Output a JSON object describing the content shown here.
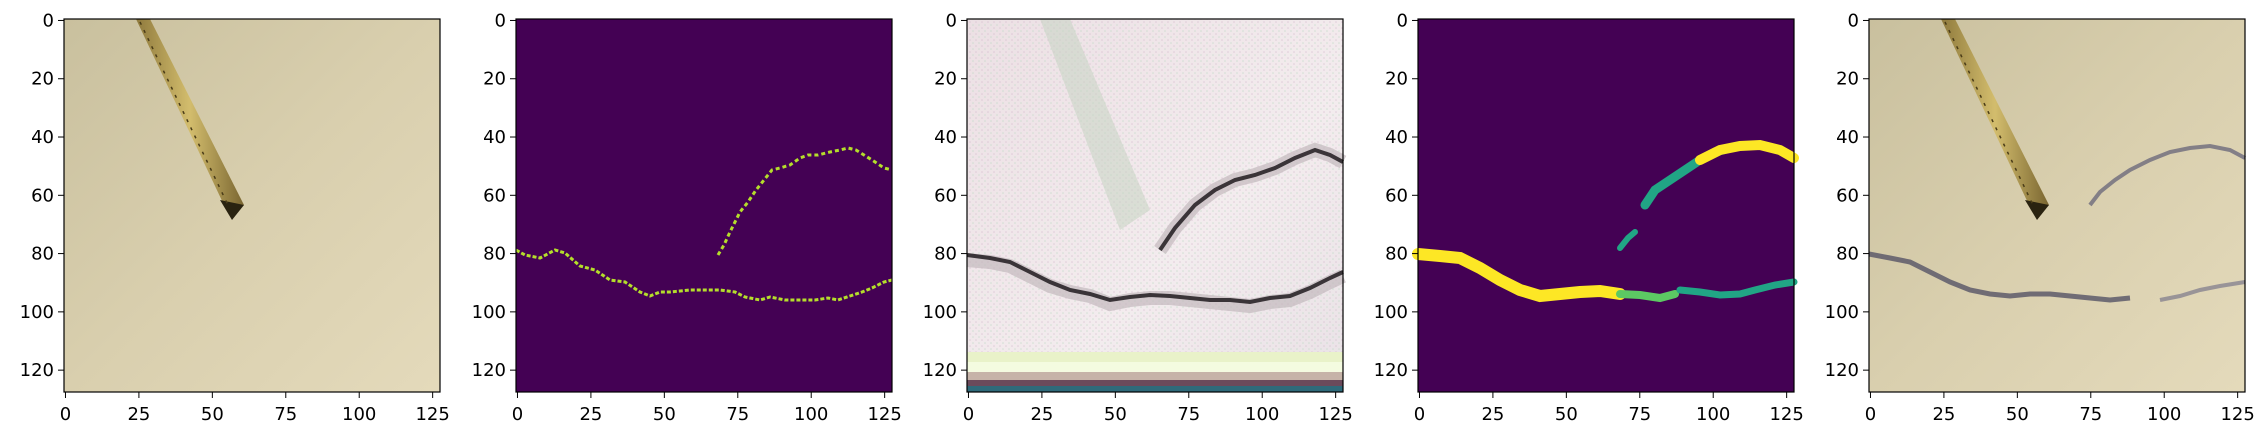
{
  "figure": {
    "panels": [
      {
        "id": "input",
        "description_name": "input-image-panel",
        "xticks": [
          "0",
          "25",
          "50",
          "75",
          "100",
          "125"
        ],
        "yticks": [
          "0",
          "20",
          "40",
          "60",
          "80",
          "100",
          "120"
        ]
      },
      {
        "id": "label-mask",
        "description_name": "label-mask-panel",
        "xticks": [
          "0",
          "25",
          "50",
          "75",
          "100",
          "125"
        ],
        "yticks": [
          "0",
          "20",
          "40",
          "60",
          "80",
          "100",
          "120"
        ]
      },
      {
        "id": "generated",
        "description_name": "generated-image-panel",
        "xticks": [
          "0",
          "25",
          "50",
          "75",
          "100",
          "125"
        ],
        "yticks": [
          "0",
          "20",
          "40",
          "60",
          "80",
          "100",
          "120"
        ]
      },
      {
        "id": "pred-mask",
        "description_name": "predicted-mask-panel",
        "xticks": [
          "0",
          "25",
          "50",
          "75",
          "100",
          "125"
        ],
        "yticks": [
          "0",
          "20",
          "40",
          "60",
          "80",
          "100",
          "120"
        ]
      },
      {
        "id": "overlay",
        "description_name": "overlay-image-panel",
        "xticks": [
          "0",
          "25",
          "50",
          "75",
          "100",
          "125"
        ],
        "yticks": [
          "0",
          "20",
          "40",
          "60",
          "80",
          "100",
          "120"
        ]
      }
    ],
    "colors": {
      "paper": "#d9cfad",
      "mask_bg": "#440154",
      "mask_line": "#b5de2b",
      "mask_bright": "#fde725",
      "mask_teal": "#21a585"
    }
  }
}
